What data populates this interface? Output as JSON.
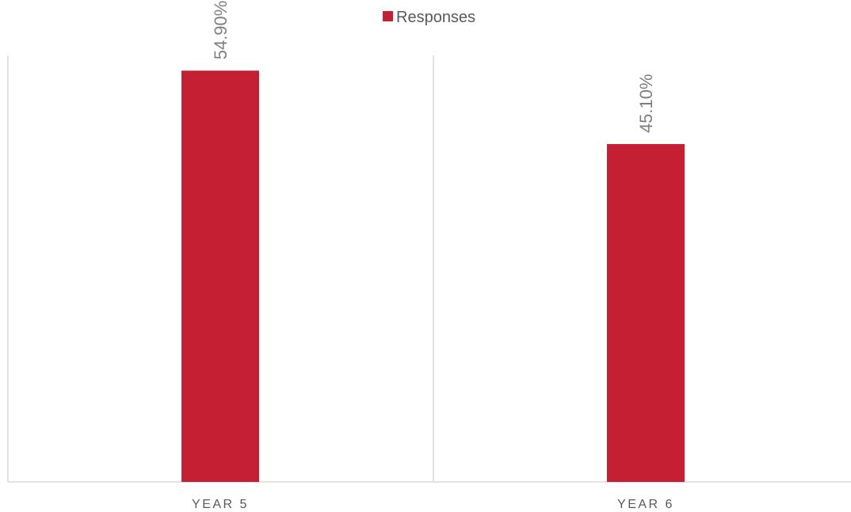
{
  "chart_data": {
    "type": "bar",
    "categories": [
      "YEAR 5",
      "YEAR 6"
    ],
    "series": [
      {
        "name": "Responses",
        "values": [
          54.9,
          45.1
        ],
        "labels": [
          "54.90%",
          "45.10%"
        ]
      }
    ],
    "ylim": [
      0,
      60
    ],
    "grid": false,
    "legend": "top",
    "colors": {
      "bar": "#c41f33",
      "axis": "#d9d9d9",
      "text": "#595959",
      "label": "#7f7f7f"
    }
  }
}
